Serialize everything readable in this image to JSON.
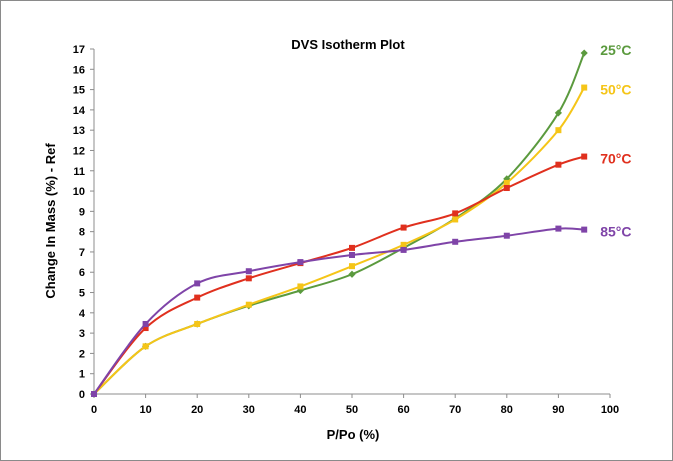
{
  "chart_data": {
    "type": "line",
    "title": "DVS Isotherm Plot",
    "xlabel": "P/Po (%)",
    "ylabel": "Change In Mass (%) - Ref",
    "xlim": [
      0,
      100
    ],
    "ylim": [
      0,
      17
    ],
    "xticks": [
      0,
      10,
      20,
      30,
      40,
      50,
      60,
      70,
      80,
      90,
      100
    ],
    "yticks": [
      0,
      1,
      2,
      3,
      4,
      5,
      6,
      7,
      8,
      9,
      10,
      11,
      12,
      13,
      14,
      15,
      16,
      17
    ],
    "grid": false,
    "legend": "inline labels at right end of each series",
    "series": [
      {
        "name": "25°C",
        "color": "#5b9a3e",
        "marker": "diamond",
        "x": [
          0,
          10,
          20,
          30,
          40,
          50,
          60,
          70,
          80,
          90,
          95
        ],
        "y": [
          0,
          2.35,
          3.45,
          4.35,
          5.1,
          5.9,
          7.2,
          8.65,
          10.6,
          13.85,
          16.8
        ]
      },
      {
        "name": "50°C",
        "color": "#f5c518",
        "marker": "square",
        "x": [
          0,
          10,
          20,
          30,
          40,
          50,
          60,
          70,
          80,
          90,
          95
        ],
        "y": [
          0,
          2.35,
          3.45,
          4.4,
          5.3,
          6.3,
          7.35,
          8.6,
          10.4,
          13.0,
          15.1
        ]
      },
      {
        "name": "70°C",
        "color": "#e0301e",
        "marker": "square",
        "x": [
          0,
          10,
          20,
          30,
          40,
          50,
          60,
          70,
          80,
          90,
          95
        ],
        "y": [
          0,
          3.25,
          4.75,
          5.7,
          6.45,
          7.2,
          8.2,
          8.9,
          10.15,
          11.3,
          11.7
        ]
      },
      {
        "name": "85°C",
        "color": "#7f44a8",
        "marker": "square",
        "x": [
          0,
          10,
          20,
          30,
          40,
          50,
          60,
          70,
          80,
          90,
          95
        ],
        "y": [
          0,
          3.45,
          5.45,
          6.05,
          6.5,
          6.85,
          7.1,
          7.5,
          7.8,
          8.15,
          8.1
        ]
      }
    ]
  }
}
